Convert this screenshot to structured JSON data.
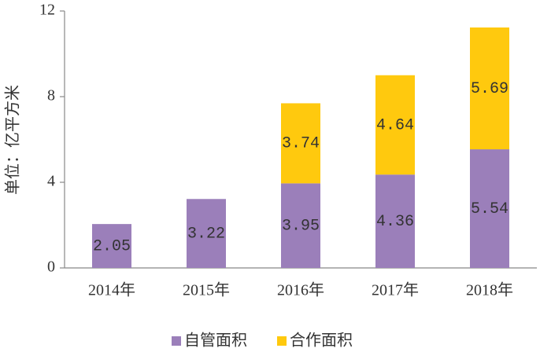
{
  "chart_data": {
    "type": "stacked_bar",
    "y_label": "单位：亿平方米",
    "categories": [
      "2014年",
      "2015年",
      "2016年",
      "2017年",
      "2018年"
    ],
    "series": [
      {
        "name": "自管面积",
        "color": "#9b7fba",
        "values": [
          2.05,
          3.22,
          3.95,
          4.36,
          5.54
        ]
      },
      {
        "name": "合作面积",
        "color": "#ffc90e",
        "values": [
          null,
          null,
          3.74,
          4.64,
          5.69
        ]
      }
    ],
    "ylim": [
      0,
      12
    ],
    "yticks": [
      0,
      4,
      8,
      12
    ],
    "grid": false,
    "legend": "bottom",
    "data_labels": true
  }
}
